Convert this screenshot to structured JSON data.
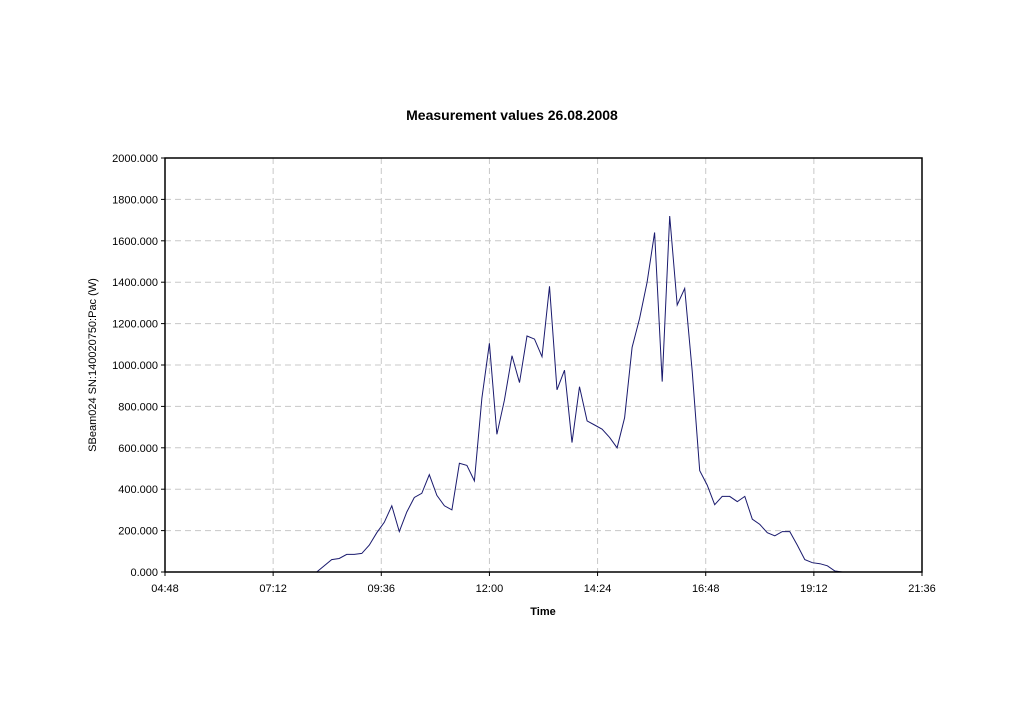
{
  "chart_data": {
    "type": "line",
    "title": "Measurement values 26.08.2008",
    "xlabel": "Time",
    "ylabel": "SBeam024 SN:140020750:Pac (W)",
    "xlim": [
      "04:48",
      "21:36"
    ],
    "ylim": [
      0,
      2000
    ],
    "grid": true,
    "xticks": [
      "04:48",
      "07:12",
      "09:36",
      "12:00",
      "14:24",
      "16:48",
      "19:12",
      "21:36"
    ],
    "yticks": [
      "0.000",
      "200.000",
      "400.000",
      "600.000",
      "800.000",
      "1000.000",
      "1200.000",
      "1400.000",
      "1600.000",
      "1800.000",
      "2000.000"
    ],
    "series": [
      {
        "color": "#1a1a6e",
        "points": [
          [
            "08:10",
            0
          ],
          [
            "08:30",
            60
          ],
          [
            "08:40",
            65
          ],
          [
            "08:50",
            85
          ],
          [
            "09:00",
            85
          ],
          [
            "09:10",
            90
          ],
          [
            "09:20",
            130
          ],
          [
            "09:30",
            190
          ],
          [
            "09:40",
            240
          ],
          [
            "09:50",
            320
          ],
          [
            "10:00",
            195
          ],
          [
            "10:10",
            290
          ],
          [
            "10:20",
            360
          ],
          [
            "10:30",
            380
          ],
          [
            "10:40",
            470
          ],
          [
            "10:50",
            370
          ],
          [
            "11:00",
            320
          ],
          [
            "11:10",
            300
          ],
          [
            "11:20",
            525
          ],
          [
            "11:30",
            515
          ],
          [
            "11:40",
            440
          ],
          [
            "11:50",
            840
          ],
          [
            "12:00",
            1105
          ],
          [
            "12:10",
            665
          ],
          [
            "12:20",
            830
          ],
          [
            "12:30",
            1045
          ],
          [
            "12:40",
            915
          ],
          [
            "12:50",
            1140
          ],
          [
            "13:00",
            1125
          ],
          [
            "13:10",
            1040
          ],
          [
            "13:20",
            1380
          ],
          [
            "13:30",
            880
          ],
          [
            "13:40",
            975
          ],
          [
            "13:50",
            625
          ],
          [
            "14:00",
            895
          ],
          [
            "14:10",
            730
          ],
          [
            "14:20",
            710
          ],
          [
            "14:30",
            690
          ],
          [
            "14:40",
            650
          ],
          [
            "14:50",
            600
          ],
          [
            "15:00",
            745
          ],
          [
            "15:10",
            1085
          ],
          [
            "15:20",
            1225
          ],
          [
            "15:30",
            1400
          ],
          [
            "15:40",
            1640
          ],
          [
            "15:50",
            920
          ],
          [
            "16:00",
            1720
          ],
          [
            "16:10",
            1290
          ],
          [
            "16:20",
            1370
          ],
          [
            "16:30",
            970
          ],
          [
            "16:40",
            490
          ],
          [
            "16:50",
            420
          ],
          [
            "17:00",
            325
          ],
          [
            "17:10",
            365
          ],
          [
            "17:20",
            365
          ],
          [
            "17:30",
            340
          ],
          [
            "17:40",
            365
          ],
          [
            "17:50",
            255
          ],
          [
            "18:00",
            230
          ],
          [
            "18:10",
            190
          ],
          [
            "18:20",
            175
          ],
          [
            "18:30",
            195
          ],
          [
            "18:40",
            195
          ],
          [
            "18:50",
            130
          ],
          [
            "19:00",
            60
          ],
          [
            "19:10",
            45
          ],
          [
            "19:20",
            40
          ],
          [
            "19:30",
            30
          ],
          [
            "19:40",
            5
          ],
          [
            "19:50",
            0
          ]
        ]
      }
    ]
  }
}
